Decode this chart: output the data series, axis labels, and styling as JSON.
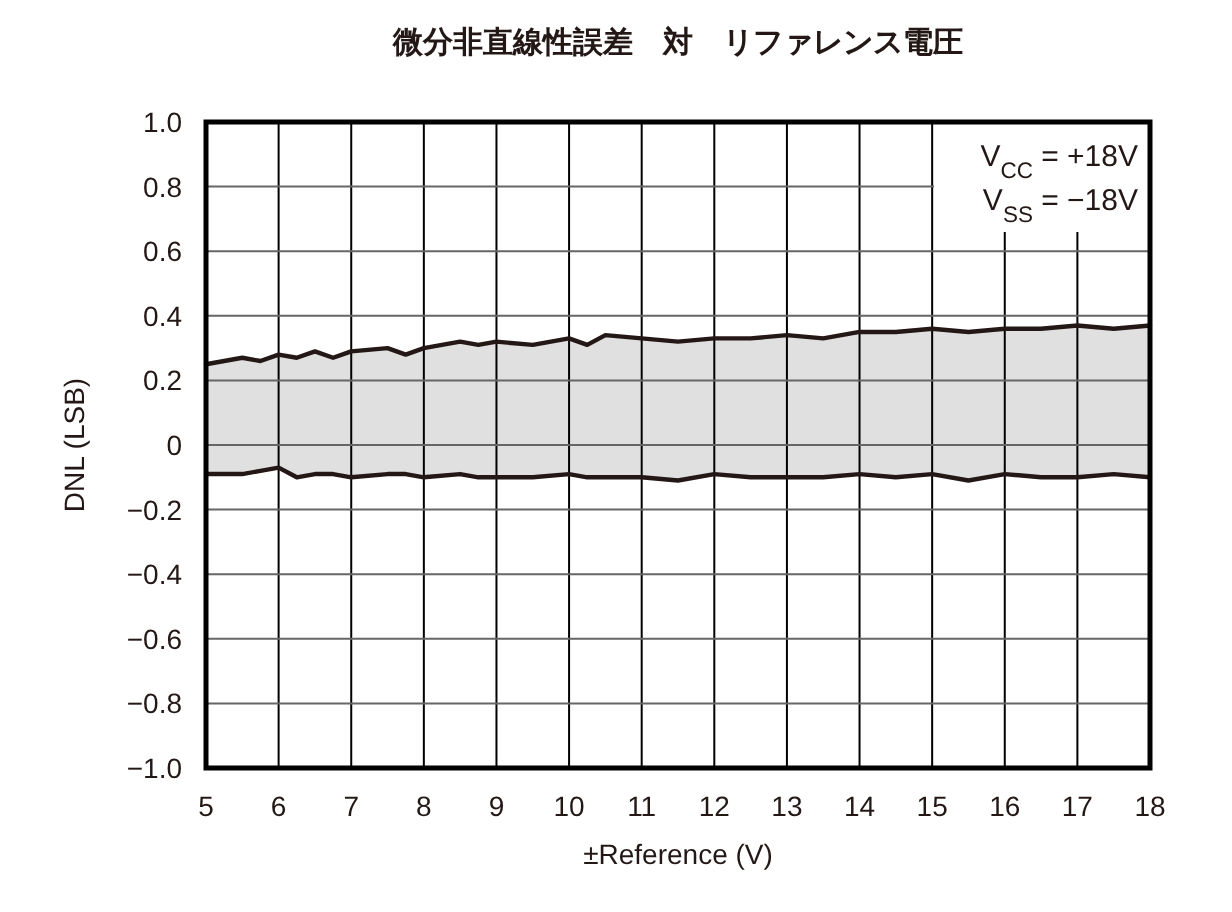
{
  "chart_data": {
    "type": "line",
    "title": "微分非直線性誤差　対　リファレンス電圧",
    "xlabel": "±Reference (V)",
    "ylabel": "DNL (LSB)",
    "xlim": [
      5,
      18
    ],
    "xticks": [
      5,
      6,
      7,
      8,
      9,
      10,
      11,
      12,
      13,
      14,
      15,
      16,
      17,
      18
    ],
    "ylim": [
      -1.0,
      1.0
    ],
    "yticks": [
      {
        "value": 1.0,
        "label": "1.0"
      },
      {
        "value": 0.8,
        "label": "0.8"
      },
      {
        "value": 0.6,
        "label": "0.6"
      },
      {
        "value": 0.4,
        "label": "0.4"
      },
      {
        "value": 0.2,
        "label": "0.2"
      },
      {
        "value": 0,
        "label": "0"
      },
      {
        "value": -0.2,
        "label": "−0.2"
      },
      {
        "value": -0.4,
        "label": "−0.4"
      },
      {
        "value": -0.6,
        "label": "−0.6"
      },
      {
        "value": -0.8,
        "label": "−0.8"
      },
      {
        "value": -1.0,
        "label": "−1.0"
      }
    ],
    "grid": true,
    "marker": "none",
    "line_style": "solid",
    "annotations": [
      "V$_{CC}$ = +18V",
      "V$_{SS}$ = −18V"
    ],
    "x": [
      5,
      5.5,
      5.75,
      6,
      6.25,
      6.5,
      6.75,
      7,
      7.5,
      7.75,
      8,
      8.5,
      8.75,
      9,
      9.5,
      10,
      10.25,
      10.5,
      11,
      11.5,
      12,
      12.5,
      13,
      13.5,
      14,
      14.5,
      15,
      15.5,
      16,
      16.5,
      17,
      17.5,
      18
    ],
    "series": [
      {
        "color": "#231815",
        "upper": [
          0.25,
          0.27,
          0.26,
          0.28,
          0.27,
          0.29,
          0.27,
          0.29,
          0.3,
          0.28,
          0.3,
          0.32,
          0.31,
          0.32,
          0.31,
          0.33,
          0.31,
          0.34,
          0.33,
          0.32,
          0.33,
          0.33,
          0.34,
          0.33,
          0.35,
          0.35,
          0.36,
          0.35,
          0.36,
          0.36,
          0.37,
          0.36,
          0.37
        ],
        "values": [
          0.25,
          0.27,
          0.26,
          0.28,
          0.27,
          0.29,
          0.27,
          0.29,
          0.3,
          0.28,
          0.3,
          0.32,
          0.31,
          0.32,
          0.31,
          0.33,
          0.31,
          0.34,
          0.33,
          0.32,
          0.33,
          0.33,
          0.34,
          0.33,
          0.35,
          0.35,
          0.36,
          0.35,
          0.36,
          0.36,
          0.37,
          0.36,
          0.37
        ],
        "lower": [
          -0.09,
          -0.09,
          -0.08,
          -0.07,
          -0.1,
          -0.09,
          -0.09,
          -0.1,
          -0.09,
          -0.09,
          -0.1,
          -0.09,
          -0.1,
          -0.1,
          -0.1,
          -0.09,
          -0.1,
          -0.1,
          -0.1,
          -0.11,
          -0.09,
          -0.1,
          -0.1,
          -0.1,
          -0.09,
          -0.1,
          -0.09,
          -0.11,
          -0.09,
          -0.1,
          -0.1,
          -0.09,
          -0.1
        ]
      },
      {
        "color": "#231815",
        "values": [
          -0.09,
          -0.09,
          -0.08,
          -0.07,
          -0.1,
          -0.09,
          -0.09,
          -0.1,
          -0.09,
          -0.09,
          -0.1,
          -0.09,
          -0.1,
          -0.1,
          -0.1,
          -0.09,
          -0.1,
          -0.1,
          -0.1,
          -0.11,
          -0.09,
          -0.1,
          -0.1,
          -0.1,
          -0.09,
          -0.1,
          -0.09,
          -0.11,
          -0.09,
          -0.1,
          -0.1,
          -0.09,
          -0.1
        ]
      }
    ]
  }
}
